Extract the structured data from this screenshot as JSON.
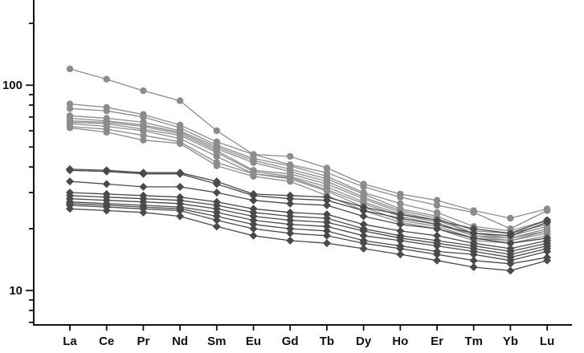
{
  "chart_data": {
    "type": "line",
    "x_scale": "category",
    "y_scale": "log",
    "categories": [
      "La",
      "Ce",
      "Pr",
      "Nd",
      "Sm",
      "Eu",
      "Gd",
      "Tb",
      "Dy",
      "Ho",
      "Er",
      "Tm",
      "Yb",
      "Lu"
    ],
    "ylim": [
      6.8,
      260
    ],
    "y_tick_labels": [
      {
        "value": 10,
        "label": "10"
      },
      {
        "value": 100,
        "label": "100"
      }
    ],
    "grid": false,
    "legend": "none",
    "title": "",
    "xlabel": "",
    "ylabel": "",
    "groups": [
      {
        "marker": "circle",
        "color": "#8c8c8c",
        "series_indices": [
          0,
          1,
          2,
          3,
          4,
          5,
          6,
          7,
          8,
          9
        ]
      },
      {
        "marker": "diamond",
        "color": "#4a4a4a",
        "series_indices": [
          10,
          11,
          12,
          13,
          14,
          15,
          16,
          17,
          18,
          19
        ]
      }
    ],
    "series": [
      {
        "values": [
          120,
          107,
          94,
          84,
          60,
          46,
          45,
          39.5,
          33,
          29.5,
          27.5,
          24.5,
          22.5,
          25
        ]
      },
      {
        "values": [
          81,
          78,
          72,
          64,
          53,
          46,
          41,
          37.5,
          32,
          28.5,
          26,
          24,
          20,
          24.5
        ]
      },
      {
        "values": [
          77,
          75,
          70,
          62,
          51,
          44,
          40.5,
          36,
          30,
          26.5,
          24,
          20.5,
          19.5,
          22
        ]
      },
      {
        "values": [
          71,
          69,
          66,
          60,
          50,
          43,
          39,
          35,
          29.5,
          25,
          23,
          19.5,
          19,
          21
        ]
      },
      {
        "values": [
          69,
          67,
          64,
          59,
          49,
          42,
          38,
          34,
          28.5,
          24.5,
          22.5,
          19,
          18.5,
          20.5
        ]
      },
      {
        "values": [
          67,
          66,
          63,
          58,
          48,
          38.5,
          37,
          33,
          28,
          24,
          22,
          19,
          18,
          20
        ]
      },
      {
        "values": [
          66,
          65,
          61,
          57,
          47,
          38,
          36,
          32,
          27,
          23.5,
          21.5,
          18.5,
          18,
          19.5
        ]
      },
      {
        "values": [
          65,
          63,
          60,
          55,
          45,
          37,
          35.5,
          31,
          26.5,
          23,
          21,
          18.5,
          17.5,
          19.5
        ]
      },
      {
        "values": [
          63,
          61,
          57,
          53,
          42,
          37,
          35,
          30.5,
          25.5,
          22,
          20.5,
          18,
          17.5,
          19
        ]
      },
      {
        "values": [
          62,
          59,
          54,
          52,
          40.5,
          36,
          34,
          29,
          24.5,
          21.5,
          20,
          17.5,
          17,
          18.5
        ]
      },
      {
        "values": [
          39,
          38.5,
          37.5,
          37.5,
          34,
          29.5,
          29,
          28.5,
          25.5,
          23.5,
          22,
          20,
          19,
          22
        ]
      },
      {
        "values": [
          38.5,
          38,
          37,
          37,
          33,
          29,
          28,
          27.5,
          24.5,
          22.5,
          21,
          19,
          18.5,
          21.5
        ]
      },
      {
        "values": [
          34,
          33,
          32,
          32,
          30,
          27.5,
          26.5,
          26,
          23,
          21,
          20,
          18,
          17,
          18
        ]
      },
      {
        "values": [
          30,
          29.5,
          29,
          28.5,
          27,
          25,
          24,
          23.5,
          21,
          19.5,
          18.5,
          17,
          16,
          17.5
        ]
      },
      {
        "values": [
          29,
          28.5,
          28,
          27.5,
          26,
          24,
          23,
          22.5,
          20,
          18.5,
          17.5,
          16.5,
          15.5,
          17
        ]
      },
      {
        "values": [
          28,
          27.5,
          27,
          26.5,
          25,
          23,
          22,
          21.5,
          19.5,
          18,
          17,
          16,
          15,
          16.5
        ]
      },
      {
        "values": [
          27,
          26.5,
          26,
          25.5,
          24,
          22,
          21,
          20.5,
          18.5,
          17.5,
          16.5,
          15.5,
          14.5,
          16
        ]
      },
      {
        "values": [
          26.5,
          26,
          25.5,
          25,
          23,
          21,
          20,
          19.5,
          17.5,
          16.5,
          15.5,
          15,
          14,
          15.5
        ]
      },
      {
        "values": [
          26,
          25.5,
          25,
          24.5,
          22,
          20,
          19,
          18.5,
          17,
          16,
          15,
          14,
          13.5,
          14.5
        ]
      },
      {
        "values": [
          25,
          24.5,
          24,
          23,
          20.5,
          18.5,
          17.5,
          17,
          16,
          15,
          14,
          13,
          12.5,
          14
        ]
      }
    ]
  }
}
